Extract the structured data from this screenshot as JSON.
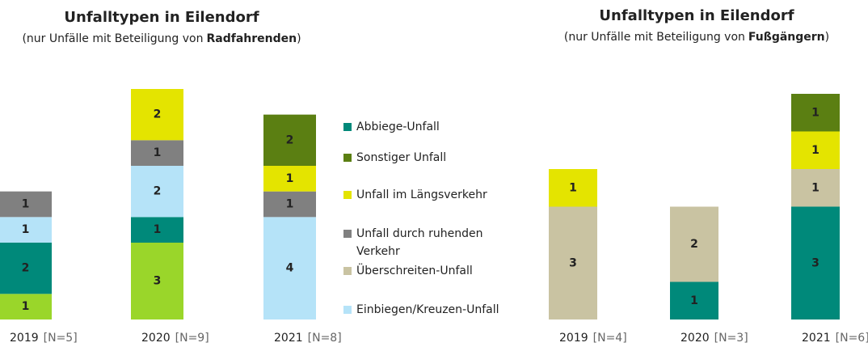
{
  "legend": [
    {
      "name": "Abbiege-Unfall",
      "color": "#00897a"
    },
    {
      "name": "Sonstiger Unfall",
      "color": "#5b7f12"
    },
    {
      "name": "Unfall im Längsverkehr",
      "color": "#e4e400"
    },
    {
      "name": "Unfall durch ruhenden Verkehr",
      "color": "#808080"
    },
    {
      "name": "Überschreiten-Unfall",
      "color": "#c9c3a2"
    },
    {
      "name": "Einbiegen/Kreuzen-Unfall",
      "color": "#b5e3f8"
    }
  ],
  "chart_data": [
    {
      "type": "stacked_bar",
      "title": "Unfalltypen in Eilendorf",
      "subtitle": [
        "(nur Unfälle mit Beteiligung von",
        "Radfahrenden",
        ")"
      ],
      "categories": [
        "2019",
        "2020",
        "2021"
      ],
      "n_labels": [
        "[N=5]",
        "[N=9]",
        "[N=8]"
      ],
      "ylim": [
        0,
        9
      ],
      "series": [
        {
          "color": "#9ad62a",
          "values": [
            1,
            3,
            0
          ]
        },
        {
          "color": "#00897a",
          "values": [
            2,
            1,
            0
          ]
        },
        {
          "color": "#b5e3f8",
          "values": [
            1,
            2,
            4
          ]
        },
        {
          "color": "#808080",
          "values": [
            1,
            1,
            1
          ]
        },
        {
          "color": "#e4e400",
          "values": [
            0,
            2,
            1
          ]
        },
        {
          "color": "#5b7f12",
          "values": [
            0,
            0,
            2
          ]
        }
      ]
    },
    {
      "type": "stacked_bar",
      "title": "Unfalltypen in Eilendorf",
      "subtitle": [
        "(nur Unfälle mit Beteiligung von",
        "Fußgängern",
        ")"
      ],
      "categories": [
        "2019",
        "2020",
        "2021"
      ],
      "n_labels": [
        "[N=4]",
        "[N=3]",
        "[N=6]"
      ],
      "ylim": [
        0,
        6
      ],
      "series": [
        {
          "color": "#00897a",
          "values": [
            0,
            1,
            3
          ]
        },
        {
          "color": "#c9c3a2",
          "values": [
            3,
            2,
            1
          ]
        },
        {
          "color": "#e4e400",
          "values": [
            1,
            0,
            1
          ]
        },
        {
          "color": "#5b7f12",
          "values": [
            0,
            0,
            1
          ]
        }
      ]
    }
  ]
}
